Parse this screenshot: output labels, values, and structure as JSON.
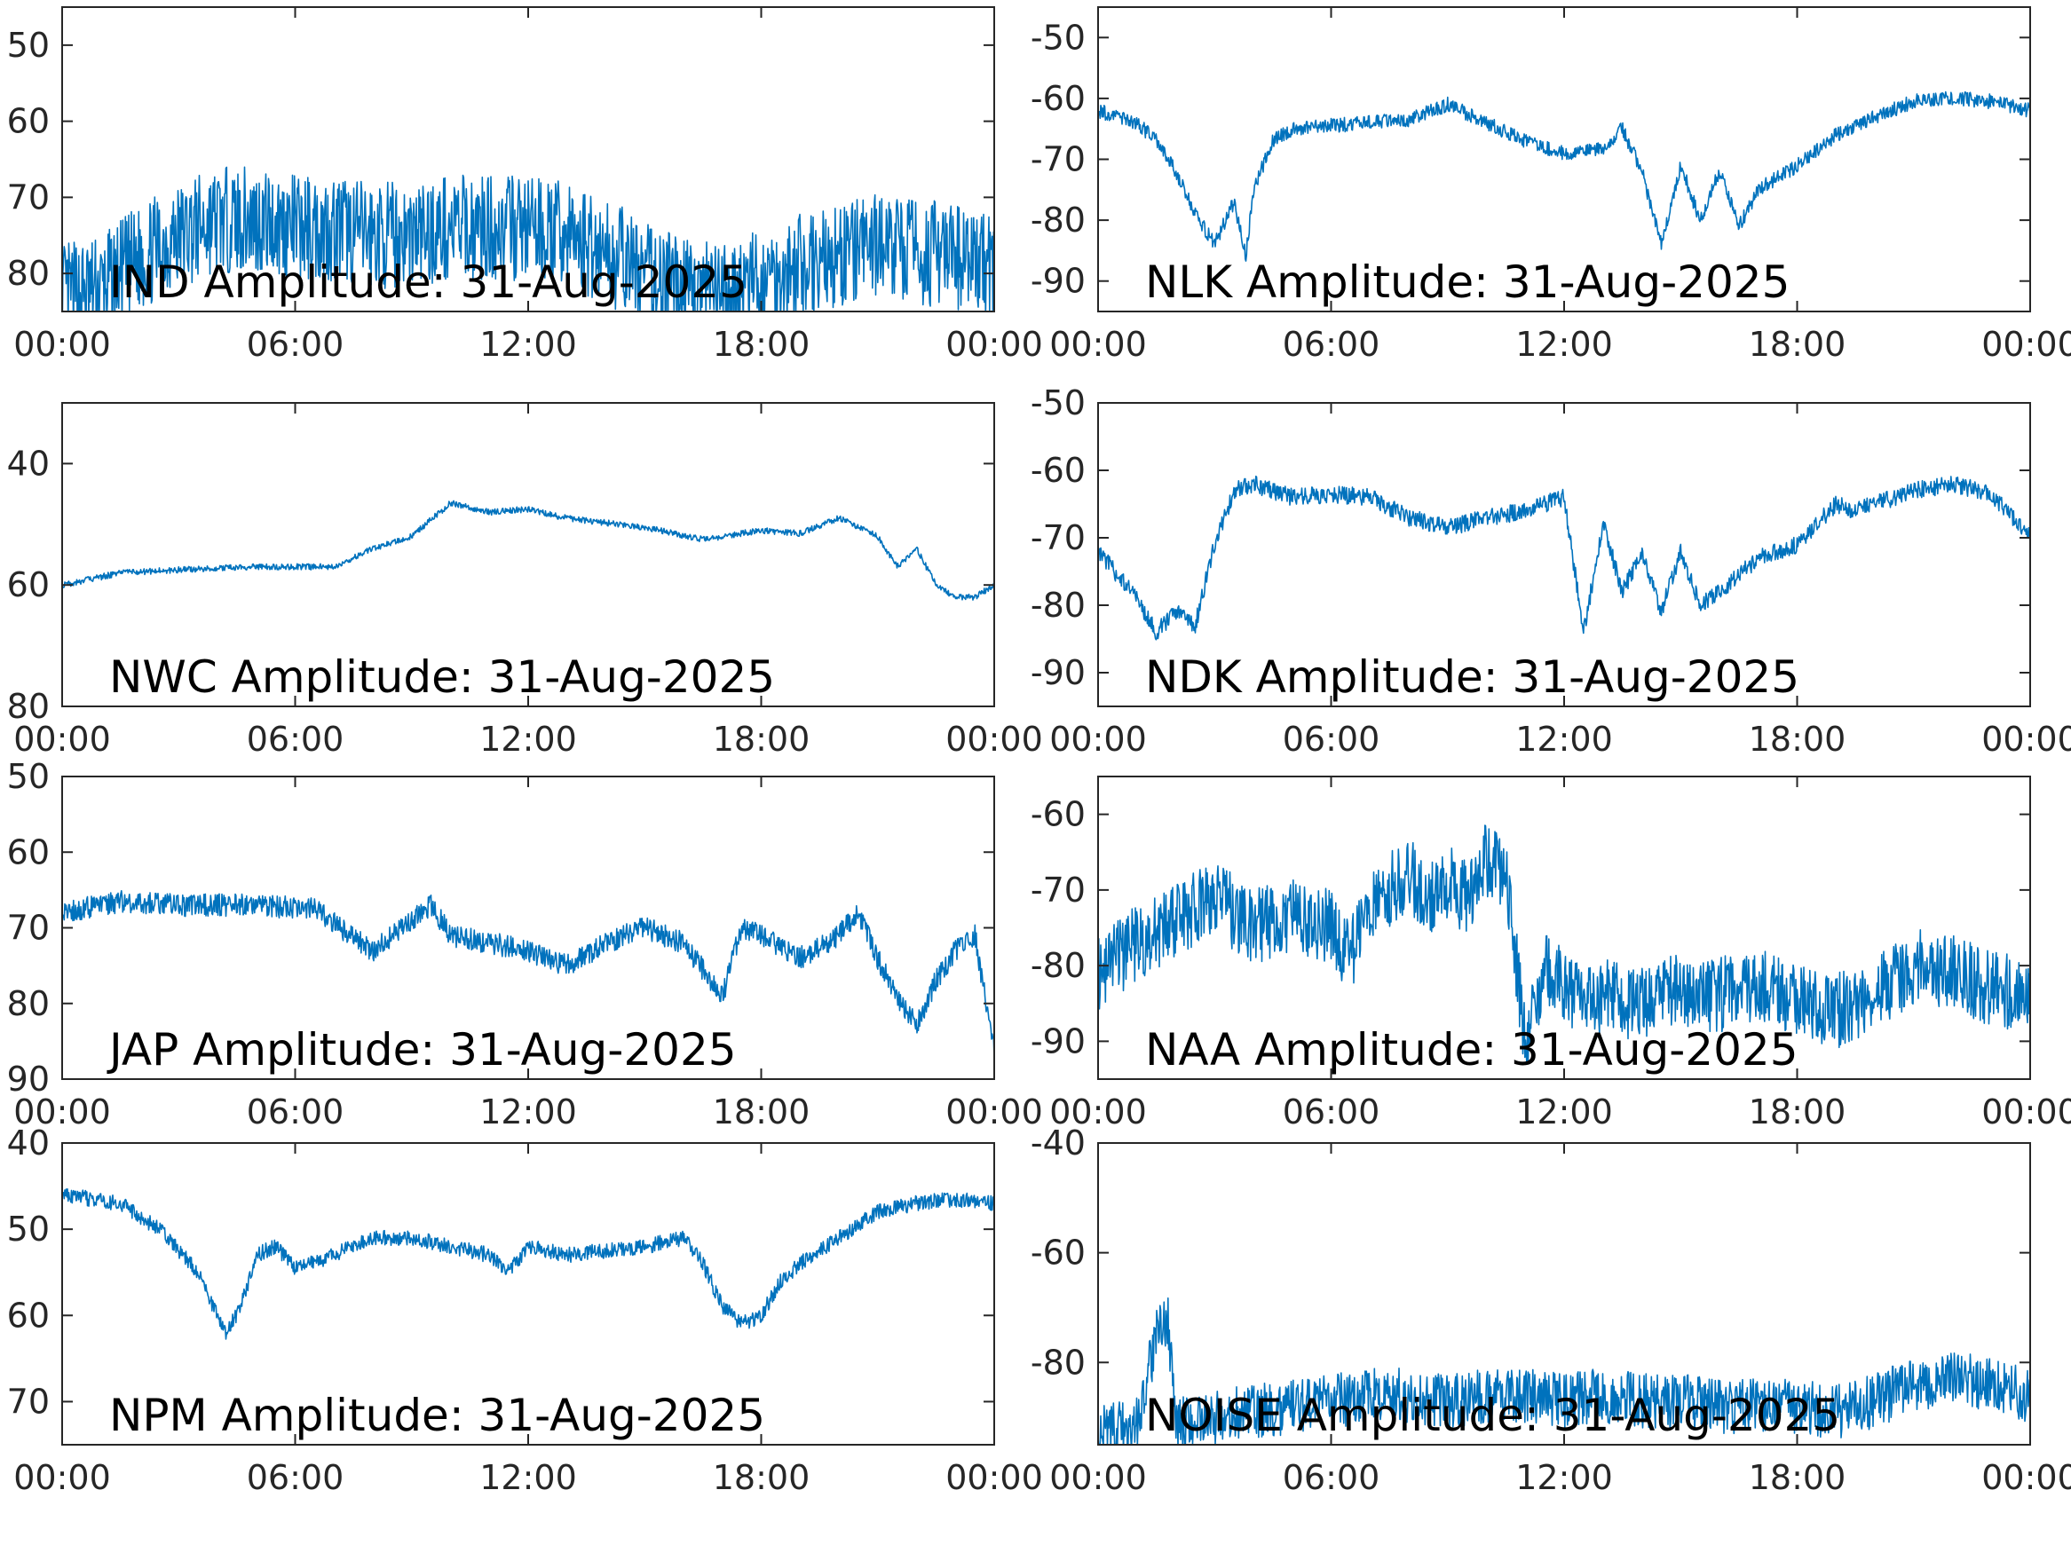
{
  "colors": {
    "trace": "#0072BD",
    "axis": "#262626",
    "background": "#ffffff"
  },
  "chart_data": [
    {
      "type": "line",
      "title": "IND Amplitude: 31-Aug-2025",
      "x_ticks": [
        "00:00",
        "06:00",
        "12:00",
        "18:00",
        "00:00"
      ],
      "ylim": [
        -85,
        -45
      ],
      "y_ticks": [
        -50,
        -60,
        -70,
        -80
      ],
      "y_tick_labels": [
        "50",
        "60",
        "70",
        "80"
      ],
      "series": [
        {
          "x_hours": [
            0,
            1,
            2,
            3,
            4,
            5,
            6,
            7,
            8,
            9,
            10,
            11,
            12,
            13,
            14,
            15,
            16,
            17,
            18,
            19,
            20,
            21,
            22,
            23,
            24
          ],
          "values": [
            -83,
            -82,
            -78,
            -75,
            -73,
            -73,
            -74,
            -74,
            -75,
            -75,
            -74,
            -74,
            -74,
            -75,
            -77,
            -80,
            -82,
            -83,
            -81,
            -79,
            -78,
            -76,
            -77,
            -78,
            -79
          ],
          "noise": 7
        }
      ]
    },
    {
      "type": "line",
      "title": "NLK Amplitude: 31-Aug-2025",
      "x_ticks": [
        "00:00",
        "06:00",
        "12:00",
        "18:00",
        "00:00"
      ],
      "ylim": [
        -95,
        -45
      ],
      "y_ticks": [
        -50,
        -60,
        -70,
        -80,
        -90
      ],
      "y_tick_labels": [
        "-50",
        "-60",
        "-70",
        "-80",
        "-90"
      ],
      "series": [
        {
          "x_hours": [
            0,
            1,
            1.5,
            2,
            2.5,
            3,
            3.5,
            3.8,
            4,
            4.5,
            5,
            6,
            7,
            8,
            9,
            10,
            11,
            12,
            13,
            13.5,
            14,
            14.5,
            15,
            15.5,
            16,
            16.5,
            17,
            18,
            19,
            20,
            21,
            22,
            23,
            24
          ],
          "values": [
            -62,
            -64,
            -67,
            -72,
            -79,
            -84,
            -77,
            -86,
            -75,
            -67,
            -65,
            -64.5,
            -64,
            -63.5,
            -61,
            -64,
            -67,
            -69,
            -68,
            -65,
            -72,
            -84,
            -71,
            -80,
            -72,
            -81,
            -75,
            -71,
            -66,
            -63,
            -60.5,
            -60,
            -60.5,
            -62
          ],
          "noise": 1.2
        }
      ]
    },
    {
      "type": "line",
      "title": "NWC Amplitude: 31-Aug-2025",
      "x_ticks": [
        "00:00",
        "06:00",
        "12:00",
        "18:00",
        "00:00"
      ],
      "ylim": [
        -80,
        -30
      ],
      "y_ticks": [
        -40,
        -60,
        -80
      ],
      "y_tick_labels": [
        "40",
        "60",
        "80"
      ],
      "series": [
        {
          "x_hours": [
            0,
            1.5,
            3,
            5,
            7,
            8,
            9,
            10,
            11,
            12,
            13,
            15,
            16.5,
            18,
            19,
            20,
            21,
            21.5,
            22,
            22.5,
            23,
            23.5,
            24
          ],
          "values": [
            -60,
            -58,
            -57.5,
            -57,
            -57,
            -54,
            -52,
            -46.5,
            -48,
            -47.5,
            -49,
            -50.5,
            -52.5,
            -51,
            -51.5,
            -49,
            -52,
            -57,
            -54,
            -60,
            -62,
            -62,
            -60
          ],
          "noise": 0.5
        }
      ]
    },
    {
      "type": "line",
      "title": "NDK Amplitude: 31-Aug-2025",
      "x_ticks": [
        "00:00",
        "06:00",
        "12:00",
        "18:00",
        "00:00"
      ],
      "ylim": [
        -95,
        -50
      ],
      "y_ticks": [
        -50,
        -60,
        -70,
        -80,
        -90
      ],
      "y_tick_labels": [
        "-50",
        "-60",
        "-70",
        "-80",
        "-90"
      ],
      "series": [
        {
          "x_hours": [
            0,
            1,
            1.5,
            2,
            2.5,
            3,
            3.5,
            4,
            5,
            6,
            7,
            8,
            9,
            10,
            11,
            12,
            12.5,
            13,
            13.5,
            14,
            14.5,
            15,
            15.5,
            16,
            17,
            18,
            19,
            19.5,
            20,
            21,
            22,
            23,
            24
          ],
          "values": [
            -72,
            -79,
            -84,
            -81,
            -83,
            -71,
            -63,
            -62,
            -64,
            -63.5,
            -64,
            -67,
            -68.5,
            -67,
            -66,
            -64,
            -84,
            -68,
            -78,
            -72,
            -81,
            -72,
            -80,
            -78,
            -73,
            -71,
            -65,
            -66,
            -65,
            -63,
            -62,
            -63.5,
            -70
          ],
          "noise": 1.3
        }
      ]
    },
    {
      "type": "line",
      "title": "JAP Amplitude: 31-Aug-2025",
      "x_ticks": [
        "00:00",
        "06:00",
        "12:00",
        "18:00",
        "00:00"
      ],
      "ylim": [
        -90,
        -50
      ],
      "y_ticks": [
        -50,
        -60,
        -70,
        -80,
        -90
      ],
      "y_tick_labels": [
        "50",
        "60",
        "70",
        "80",
        "90"
      ],
      "series": [
        {
          "x_hours": [
            0,
            1.5,
            3,
            5,
            6.5,
            8,
            9,
            9.5,
            10,
            11,
            12,
            13,
            14,
            15,
            16,
            17,
            17.5,
            18,
            19,
            20,
            20.5,
            21,
            21.5,
            22,
            22.5,
            23,
            23.5,
            24
          ],
          "values": [
            -68,
            -66.5,
            -67,
            -67,
            -67.5,
            -73,
            -69,
            -67,
            -71,
            -72,
            -73,
            -75,
            -72,
            -70,
            -72,
            -79,
            -70,
            -71,
            -74,
            -71,
            -68,
            -74,
            -79,
            -83,
            -77,
            -73,
            -71,
            -86
          ],
          "noise": 1.5
        }
      ]
    },
    {
      "type": "line",
      "title": "NAA Amplitude: 31-Aug-2025",
      "x_ticks": [
        "00:00",
        "06:00",
        "12:00",
        "18:00",
        "00:00"
      ],
      "ylim": [
        -95,
        -55
      ],
      "y_ticks": [
        -60,
        -70,
        -80,
        -90
      ],
      "y_tick_labels": [
        "-60",
        "-70",
        "-80",
        "-90"
      ],
      "series": [
        {
          "x_hours": [
            0,
            1,
            2,
            3,
            4,
            5,
            6,
            6.5,
            7,
            8,
            8.5,
            9,
            9.5,
            10,
            10.5,
            11,
            11.5,
            12,
            13,
            14,
            15,
            16,
            17,
            18,
            19,
            20,
            21,
            22,
            23,
            24
          ],
          "values": [
            -81,
            -77,
            -74,
            -71,
            -75,
            -73,
            -75,
            -79,
            -72,
            -68,
            -71,
            -69,
            -71,
            -66,
            -68,
            -90,
            -80,
            -83,
            -84,
            -85,
            -83,
            -84,
            -82,
            -85,
            -86,
            -84,
            -80,
            -81,
            -83,
            -84
          ],
          "noise": 5
        }
      ]
    },
    {
      "type": "line",
      "title": "NPM Amplitude: 31-Aug-2025",
      "x_ticks": [
        "00:00",
        "06:00",
        "12:00",
        "18:00",
        "00:00"
      ],
      "ylim": [
        -75,
        -40
      ],
      "y_ticks": [
        -40,
        -50,
        -60,
        -70
      ],
      "y_tick_labels": [
        "40",
        "50",
        "60",
        "70"
      ],
      "series": [
        {
          "x_hours": [
            0,
            1.5,
            2.5,
            3.5,
            4.2,
            4.6,
            5,
            5.5,
            6,
            7,
            8,
            9,
            10,
            11,
            11.5,
            12,
            13,
            14,
            15,
            16,
            16.5,
            17,
            17.5,
            18,
            18.5,
            19,
            20,
            21,
            22,
            23,
            24
          ],
          "values": [
            -46,
            -47,
            -50,
            -55,
            -62,
            -59,
            -53,
            -52,
            -54.5,
            -53,
            -51,
            -51,
            -52,
            -53,
            -55,
            -52,
            -53,
            -52.5,
            -52,
            -51,
            -54,
            -59,
            -61,
            -60,
            -56,
            -54,
            -51,
            -48,
            -47,
            -46.5,
            -47
          ],
          "noise": 0.9
        }
      ]
    },
    {
      "type": "line",
      "title": "NOISE Amplitude: 31-Aug-2025",
      "x_ticks": [
        "00:00",
        "06:00",
        "12:00",
        "18:00",
        "00:00"
      ],
      "ylim": [
        -95,
        -40
      ],
      "y_ticks": [
        -40,
        -60,
        -80
      ],
      "y_tick_labels": [
        "-40",
        "-60",
        "-80"
      ],
      "series": [
        {
          "x_hours": [
            0,
            1,
            1.5,
            1.8,
            2,
            3,
            4,
            5,
            6,
            7,
            8,
            9,
            10,
            11,
            12,
            13,
            14,
            15,
            16,
            17,
            18,
            19,
            20,
            21,
            22,
            23,
            24
          ],
          "values": [
            -93,
            -91,
            -75,
            -73,
            -91,
            -90,
            -89,
            -88,
            -87,
            -86,
            -86,
            -87,
            -86,
            -86,
            -87,
            -86,
            -87,
            -87,
            -88,
            -88,
            -88,
            -89,
            -87,
            -84,
            -83,
            -84,
            -86
          ],
          "noise": 5
        }
      ]
    }
  ]
}
